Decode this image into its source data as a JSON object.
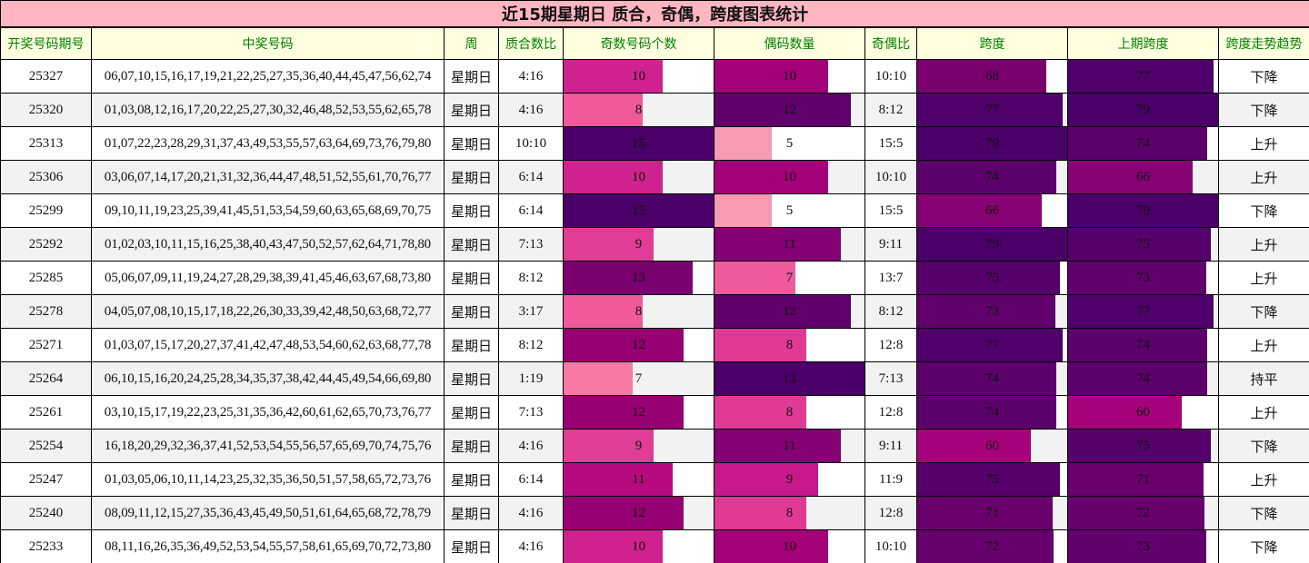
{
  "title": "近15期星期日 质合，奇偶，跨度图表统计",
  "headers": [
    "开奖号码期号",
    "中奖号码",
    "周",
    "质合数比",
    "奇数号码个数",
    "偶码数量",
    "奇偶比",
    "跨度",
    "上期跨度",
    "跨度走势趋势"
  ],
  "bar_max": {
    "odd": 15,
    "even": 13,
    "span": 79,
    "prev_span": 79
  },
  "rows": [
    {
      "issue": "25327",
      "numbers": "06,07,10,15,16,17,19,21,22,25,27,35,36,40,44,45,47,56,62,74",
      "week": "星期日",
      "prime_ratio": "4:16",
      "odd": "10",
      "odd_color": "#d0228e",
      "odd_pct": "66%",
      "even": "10",
      "even_color": "#a3007a",
      "even_pct": "76%",
      "oe_ratio": "10:10",
      "span": "68",
      "span_color": "#7a0070",
      "span_pct": "86%",
      "prev_span": "77",
      "prev_color": "#4f006a",
      "prev_pct": "97%",
      "trend": "下降"
    },
    {
      "issue": "25320",
      "numbers": "01,03,08,12,16,17,20,22,25,27,30,32,46,48,52,53,55,62,65,78",
      "week": "星期日",
      "prime_ratio": "4:16",
      "odd": "8",
      "odd_color": "#f05a9b",
      "odd_pct": "53%",
      "even": "12",
      "even_color": "#61006c",
      "even_pct": "91%",
      "oe_ratio": "8:12",
      "span": "77",
      "span_color": "#4f006a",
      "span_pct": "97%",
      "prev_span": "79",
      "prev_color": "#4a0068",
      "prev_pct": "100%",
      "trend": "下降"
    },
    {
      "issue": "25313",
      "numbers": "01,07,22,23,28,29,31,37,43,49,53,55,57,63,64,69,73,76,79,80",
      "week": "星期日",
      "prime_ratio": "10:10",
      "odd": "15",
      "odd_color": "#4a0068",
      "odd_pct": "100%",
      "even": "5",
      "even_color": "#f79bb3",
      "even_pct": "38%",
      "oe_ratio": "15:5",
      "span": "79",
      "span_color": "#4a0068",
      "span_pct": "100%",
      "prev_span": "74",
      "prev_color": "#5c006c",
      "prev_pct": "93%",
      "trend": "上升"
    },
    {
      "issue": "25306",
      "numbers": "03,06,07,14,17,20,21,31,32,36,44,47,48,51,52,55,61,70,76,77",
      "week": "星期日",
      "prime_ratio": "6:14",
      "odd": "10",
      "odd_color": "#d0228e",
      "odd_pct": "66%",
      "even": "10",
      "even_color": "#a3007a",
      "even_pct": "76%",
      "oe_ratio": "10:10",
      "span": "74",
      "span_color": "#5c006c",
      "span_pct": "93%",
      "prev_span": "66",
      "prev_color": "#870074",
      "prev_pct": "83%",
      "trend": "上升"
    },
    {
      "issue": "25299",
      "numbers": "09,10,11,19,23,25,39,41,45,51,53,54,59,60,63,65,68,69,70,75",
      "week": "星期日",
      "prime_ratio": "6:14",
      "odd": "15",
      "odd_color": "#4a0068",
      "odd_pct": "100%",
      "even": "5",
      "even_color": "#f79bb3",
      "even_pct": "38%",
      "oe_ratio": "15:5",
      "span": "66",
      "span_color": "#870074",
      "span_pct": "83%",
      "prev_span": "79",
      "prev_color": "#4a0068",
      "prev_pct": "100%",
      "trend": "下降"
    },
    {
      "issue": "25292",
      "numbers": "01,02,03,10,11,15,16,25,38,40,43,47,50,52,57,62,64,71,78,80",
      "week": "星期日",
      "prime_ratio": "7:13",
      "odd": "9",
      "odd_color": "#e03d96",
      "odd_pct": "60%",
      "even": "11",
      "even_color": "#840074",
      "even_pct": "84%",
      "oe_ratio": "9:11",
      "span": "79",
      "span_color": "#4a0068",
      "span_pct": "100%",
      "prev_span": "75",
      "prev_color": "#56006b",
      "prev_pct": "95%",
      "trend": "上升"
    },
    {
      "issue": "25285",
      "numbers": "05,06,07,09,11,19,24,27,28,29,38,39,41,45,46,63,67,68,73,80",
      "week": "星期日",
      "prime_ratio": "8:12",
      "odd": "13",
      "odd_color": "#7a0070",
      "odd_pct": "86%",
      "even": "7",
      "even_color": "#ee5a9b",
      "even_pct": "54%",
      "oe_ratio": "13:7",
      "span": "75",
      "span_color": "#56006b",
      "span_pct": "95%",
      "prev_span": "73",
      "prev_color": "#61006c",
      "prev_pct": "92%",
      "trend": "上升"
    },
    {
      "issue": "25278",
      "numbers": "04,05,07,08,10,15,17,18,22,26,30,33,39,42,48,50,63,68,72,77",
      "week": "星期日",
      "prime_ratio": "3:17",
      "odd": "8",
      "odd_color": "#f05a9b",
      "odd_pct": "53%",
      "even": "12",
      "even_color": "#61006c",
      "even_pct": "91%",
      "oe_ratio": "8:12",
      "span": "73",
      "span_color": "#61006c",
      "span_pct": "92%",
      "prev_span": "77",
      "prev_color": "#4f006a",
      "prev_pct": "97%",
      "trend": "下降"
    },
    {
      "issue": "25271",
      "numbers": "01,03,07,15,17,20,27,37,41,42,47,48,53,54,60,62,63,68,77,78",
      "week": "星期日",
      "prime_ratio": "8:12",
      "odd": "12",
      "odd_color": "#960072",
      "odd_pct": "80%",
      "even": "8",
      "even_color": "#e03996",
      "even_pct": "61%",
      "oe_ratio": "12:8",
      "span": "77",
      "span_color": "#4f006a",
      "span_pct": "97%",
      "prev_span": "74",
      "prev_color": "#5c006c",
      "prev_pct": "93%",
      "trend": "上升"
    },
    {
      "issue": "25264",
      "numbers": "06,10,15,16,20,24,25,28,34,35,37,38,42,44,45,49,54,66,69,80",
      "week": "星期日",
      "prime_ratio": "1:19",
      "odd": "7",
      "odd_color": "#f779a4",
      "odd_pct": "46%",
      "even": "13",
      "even_color": "#4a0068",
      "even_pct": "100%",
      "oe_ratio": "7:13",
      "span": "74",
      "span_color": "#5c006c",
      "span_pct": "93%",
      "prev_span": "74",
      "prev_color": "#5c006c",
      "prev_pct": "93%",
      "trend": "持平"
    },
    {
      "issue": "25261",
      "numbers": "03,10,15,17,19,22,23,25,31,35,36,42,60,61,62,65,70,73,76,77",
      "week": "星期日",
      "prime_ratio": "7:13",
      "odd": "12",
      "odd_color": "#960072",
      "odd_pct": "80%",
      "even": "8",
      "even_color": "#e03996",
      "even_pct": "61%",
      "oe_ratio": "12:8",
      "span": "74",
      "span_color": "#5c006c",
      "span_pct": "93%",
      "prev_span": "60",
      "prev_color": "#a6007a",
      "prev_pct": "76%",
      "trend": "上升"
    },
    {
      "issue": "25254",
      "numbers": "16,18,20,29,32,36,37,41,52,53,54,55,56,57,65,69,70,74,75,76",
      "week": "星期日",
      "prime_ratio": "4:16",
      "odd": "9",
      "odd_color": "#e03d96",
      "odd_pct": "60%",
      "even": "11",
      "even_color": "#840074",
      "even_pct": "84%",
      "oe_ratio": "9:11",
      "span": "60",
      "span_color": "#a6007a",
      "span_pct": "76%",
      "prev_span": "75",
      "prev_color": "#56006b",
      "prev_pct": "95%",
      "trend": "下降"
    },
    {
      "issue": "25247",
      "numbers": "01,03,05,06,10,11,14,23,25,32,35,36,50,51,57,58,65,72,73,76",
      "week": "星期日",
      "prime_ratio": "6:14",
      "odd": "11",
      "odd_color": "#b80a80",
      "odd_pct": "73%",
      "even": "9",
      "even_color": "#c8198a",
      "even_pct": "69%",
      "oe_ratio": "11:9",
      "span": "75",
      "span_color": "#56006b",
      "span_pct": "95%",
      "prev_span": "71",
      "prev_color": "#6a006e",
      "prev_pct": "90%",
      "trend": "上升"
    },
    {
      "issue": "25240",
      "numbers": "08,09,11,12,15,27,35,36,43,45,49,50,51,61,64,65,68,72,78,79",
      "week": "星期日",
      "prime_ratio": "4:16",
      "odd": "12",
      "odd_color": "#960072",
      "odd_pct": "80%",
      "even": "8",
      "even_color": "#e03996",
      "even_pct": "61%",
      "oe_ratio": "12:8",
      "span": "71",
      "span_color": "#6a006e",
      "span_pct": "90%",
      "prev_span": "72",
      "prev_color": "#66006d",
      "prev_pct": "91%",
      "trend": "下降"
    },
    {
      "issue": "25233",
      "numbers": "08,11,16,26,35,36,49,52,53,54,55,57,58,61,65,69,70,72,73,80",
      "week": "星期日",
      "prime_ratio": "4:16",
      "odd": "10",
      "odd_color": "#d0228e",
      "odd_pct": "66%",
      "even": "10",
      "even_color": "#a3007a",
      "even_pct": "76%",
      "oe_ratio": "10:10",
      "span": "72",
      "span_color": "#66006d",
      "span_pct": "91%",
      "prev_span": "73",
      "prev_color": "#61006c",
      "prev_pct": "92%",
      "trend": "下降"
    }
  ]
}
